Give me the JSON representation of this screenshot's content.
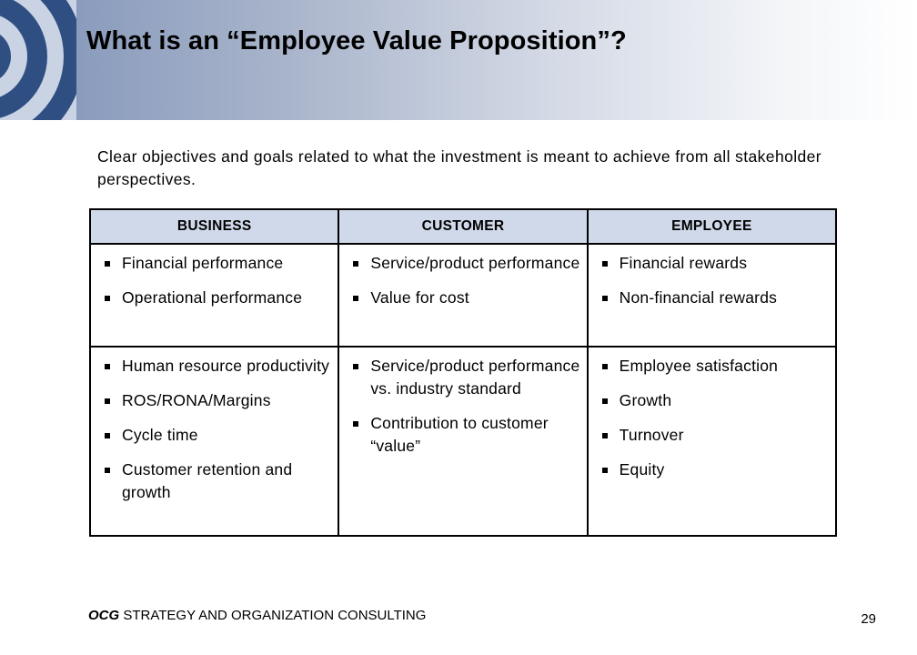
{
  "slide": {
    "title": "What is an “Employee Value Proposition”?",
    "intro": "Clear objectives and goals related to what the investment is meant to achieve from all stakeholder perspectives."
  },
  "table": {
    "headers": [
      "BUSINESS",
      "CUSTOMER",
      "EMPLOYEE"
    ],
    "rows": [
      [
        [
          "Financial performance",
          "Operational performance"
        ],
        [
          "Service/product performance",
          "Value for cost"
        ],
        [
          "Financial rewards",
          "Non-financial rewards"
        ]
      ],
      [
        [
          "Human resource productivity",
          "ROS/RONA/Margins",
          "Cycle time",
          "Customer retention and growth"
        ],
        [
          "Service/product performance vs. industry standard",
          "Contribution to customer “value”"
        ],
        [
          "Employee satisfaction",
          "Growth",
          "Turnover",
          "Equity"
        ]
      ]
    ]
  },
  "footer": {
    "brand_abbr": "OCG",
    "brand_text": "STRATEGY AND ORGANIZATION CONSULTING",
    "page_number": "29"
  },
  "colors": {
    "header_start": "#7f93b8",
    "table_header_bg": "#d0d9ea",
    "arc_color": "#2f4f82"
  }
}
